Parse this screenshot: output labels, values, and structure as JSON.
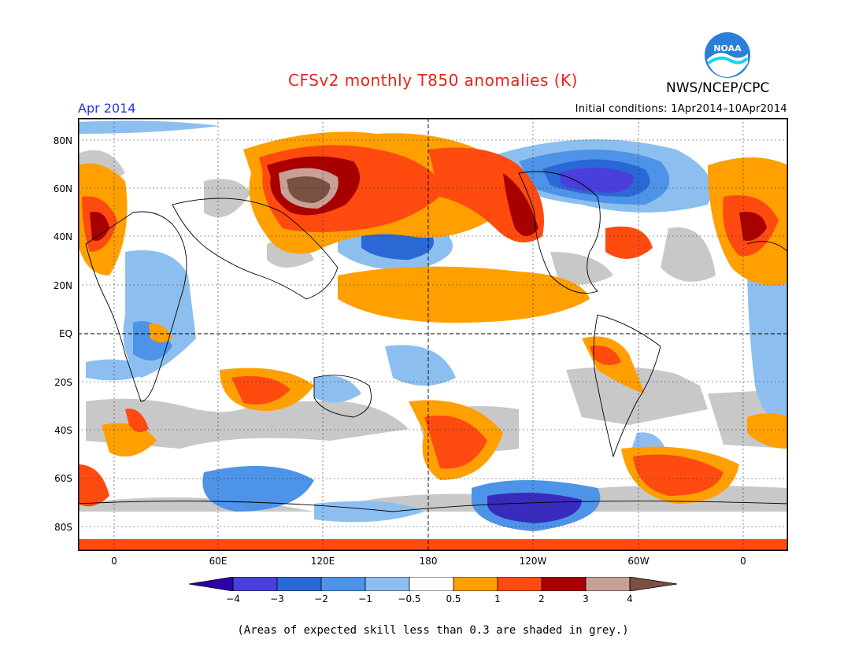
{
  "header": {
    "title": "CFSv2 monthly T850 anomalies (K)",
    "month": "Apr 2014",
    "initial_conditions": "Initial conditions: 1Apr2014–10Apr2014",
    "agency": "NWS/NCEP/CPC",
    "logo_text": "NOAA"
  },
  "axes": {
    "lat_labels": [
      "80N",
      "60N",
      "40N",
      "20N",
      "EQ",
      "20S",
      "40S",
      "60S",
      "80S"
    ],
    "lon_labels": [
      "0",
      "60E",
      "120E",
      "180",
      "120W",
      "60W",
      "0"
    ]
  },
  "colorbar": {
    "labels": [
      "−4",
      "−3",
      "−2",
      "−1",
      "−0.5",
      "0.5",
      "1",
      "2",
      "3",
      "4"
    ],
    "colors": [
      "#2d00a8",
      "#4a3fdc",
      "#2a68d6",
      "#4d93e8",
      "#8cbff0",
      "#ffffff",
      "#ffa000",
      "#ff4a10",
      "#a80000",
      "#c9a096",
      "#7a5040"
    ]
  },
  "legend_note": "(Areas of expected skill less than 0.3 are shaded in grey.)",
  "colors": {
    "title": "#e8231a",
    "month": "#2a33d6",
    "grey_skill": "#c8c8c8"
  }
}
